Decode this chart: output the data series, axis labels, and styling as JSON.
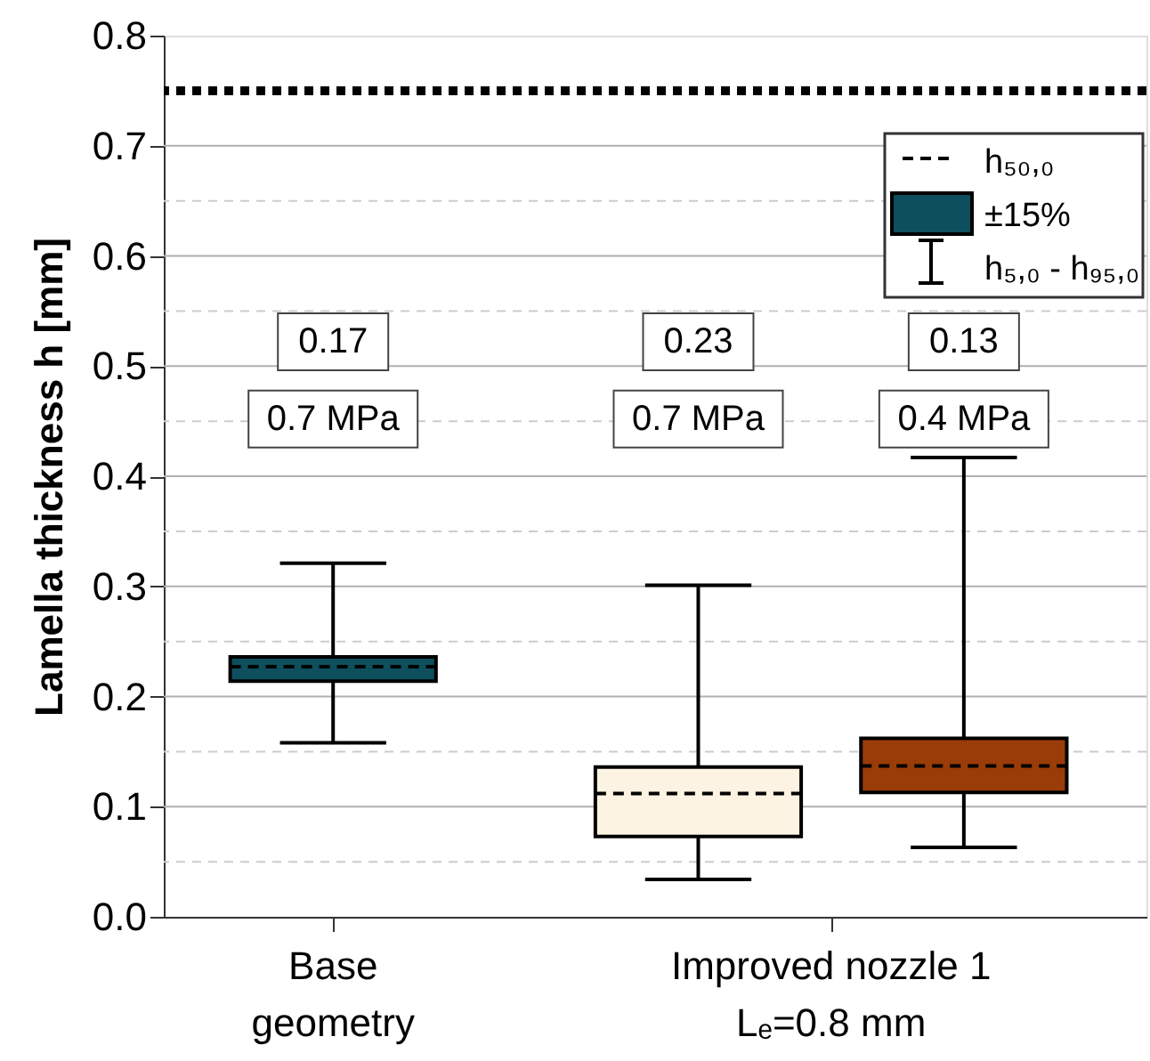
{
  "chart_data": {
    "type": "box",
    "ylabel": "Lamella thickness h [mm]",
    "categories": [
      "Base\ngeometry",
      "Improved nozzle 1\nLₑ=0.8 mm"
    ],
    "series": [
      {
        "color": "#0d4f5c",
        "boxes": [
          {
            "low": 0.158,
            "q1": 0.214,
            "median": 0.227,
            "q3": 0.236,
            "high": 0.321
          },
          null
        ]
      },
      {
        "color": "#fdf3e3",
        "boxes": [
          null,
          {
            "low": 0.034,
            "q1": 0.073,
            "median": 0.112,
            "q3": 0.136,
            "high": 0.301
          }
        ]
      },
      {
        "color": "#9a3c08",
        "boxes": [
          null,
          {
            "low": 0.063,
            "q1": 0.113,
            "median": 0.137,
            "q3": 0.162,
            "high": 0.417
          }
        ]
      }
    ],
    "ylim": [
      0,
      0.8
    ],
    "yticks": [
      {
        "value": 0,
        "label": "0.0"
      },
      {
        "value": 0.05,
        "label": null
      },
      0.1,
      {
        "value": 0.15,
        "label": null
      },
      0.2,
      {
        "value": 0.25,
        "label": null
      },
      0.3,
      {
        "value": 0.35,
        "label": null
      },
      0.4,
      {
        "value": 0.45,
        "label": null
      },
      0.5,
      {
        "value": 0.55,
        "label": null
      },
      0.6,
      {
        "value": 0.65,
        "label": null
      },
      0.7,
      {
        "value": 0.75,
        "label": null
      },
      0.8
    ],
    "ref_lines": [
      {
        "axis": "y",
        "value": 0.75,
        "color": "#000000",
        "line_style": "dotted"
      }
    ],
    "annotations": [
      "h₅₀,₀",
      "±15%",
      "h₅,₀ - h₉₅,₀",
      "0.17",
      "0.7 MPa",
      "0.23",
      "0.7 MPa",
      "0.13",
      "0.4 MPa"
    ],
    "grid": true
  }
}
